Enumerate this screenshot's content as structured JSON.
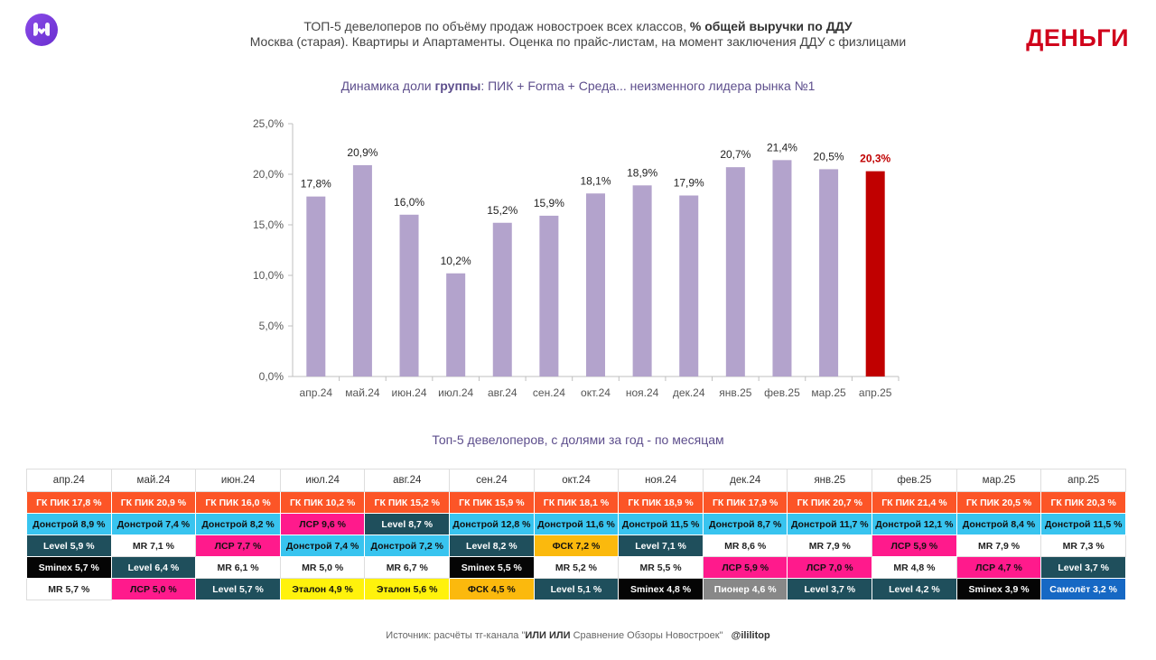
{
  "header": {
    "title_prefix": "ТОП-5 девелоперов по объёму продаж новостроек всех классов,",
    "title_bold": "% общей выручки по ДДУ",
    "subtitle": "Москва (старая). Квартиры и Апартаменты. Оценка по прайс-листам, на момент заключения ДДУ с физлицами",
    "brand": "ДЕНЬГИ",
    "logo_icon": "hands-heart-icon"
  },
  "chart_title": {
    "prefix": "Динамика доли",
    "bold": "группы",
    "suffix": ": ПИК + Forma + Среда... неизменного лидера рынка №1"
  },
  "chart_data": {
    "type": "bar",
    "categories": [
      "апр.24",
      "май.24",
      "июн.24",
      "июл.24",
      "авг.24",
      "сен.24",
      "окт.24",
      "ноя.24",
      "дек.24",
      "янв.25",
      "фев.25",
      "мар.25",
      "апр.25"
    ],
    "values": [
      17.8,
      20.9,
      16.0,
      10.2,
      15.2,
      15.9,
      18.1,
      18.9,
      17.9,
      20.7,
      21.4,
      20.5,
      20.3
    ],
    "labels": [
      "17,8%",
      "20,9%",
      "16,0%",
      "10,2%",
      "15,2%",
      "15,9%",
      "18,1%",
      "18,9%",
      "17,9%",
      "20,7%",
      "21,4%",
      "20,5%",
      "20,3%"
    ],
    "ylim": [
      0,
      25
    ],
    "yticks": [
      0,
      5,
      10,
      15,
      20,
      25
    ],
    "ytick_labels": [
      "0,0%",
      "5,0%",
      "10,0%",
      "15,0%",
      "20,0%",
      "25,0%"
    ],
    "grid": false,
    "bar_color": "#b3a3cc",
    "highlight_color": "#c00000",
    "highlight_index": 12
  },
  "table_title": "Топ-5 девелоперов, с долями за год - по месяцам",
  "table": {
    "months": [
      "апр.24",
      "май.24",
      "июн.24",
      "июл.24",
      "авг.24",
      "сен.24",
      "окт.24",
      "ноя.24",
      "дек.24",
      "янв.25",
      "фев.25",
      "мар.25",
      "апр.25"
    ],
    "rows": [
      [
        "ГК ПИК 17,8 %",
        "ГК ПИК 20,9 %",
        "ГК ПИК 16,0 %",
        "ГК ПИК 10,2 %",
        "ГК ПИК 15,2 %",
        "ГК ПИК 15,9 %",
        "ГК ПИК 18,1 %",
        "ГК ПИК 18,9 %",
        "ГК ПИК 17,9 %",
        "ГК ПИК 20,7 %",
        "ГК ПИК 21,4 %",
        "ГК ПИК 20,5 %",
        "ГК ПИК 20,3 %"
      ],
      [
        "Донстрой 8,9 %",
        "Донстрой 7,4 %",
        "Донстрой 8,2 %",
        "ЛСР 9,6 %",
        "Level 8,7 %",
        "Донстрой 12,8 %",
        "Донстрой 11,6 %",
        "Донстрой 11,5 %",
        "Донстрой 8,7 %",
        "Донстрой 11,7 %",
        "Донстрой 12,1 %",
        "Донстрой 8,4 %",
        "Донстрой 11,5 %"
      ],
      [
        "Level 5,9 %",
        "MR 7,1 %",
        "ЛСР 7,7 %",
        "Донстрой 7,4 %",
        "Донстрой 7,2 %",
        "Level 8,2 %",
        "ФСК 7,2 %",
        "Level 7,1 %",
        "MR 8,6 %",
        "MR 7,9 %",
        "ЛСР 5,9 %",
        "MR 7,9 %",
        "MR 7,3 %"
      ],
      [
        "Sminex 5,7 %",
        "Level 6,4 %",
        "MR 6,1 %",
        "MR 5,0 %",
        "MR 6,7 %",
        "Sminex 5,5 %",
        "MR 5,2 %",
        "MR 5,5 %",
        "ЛСР 5,9 %",
        "ЛСР 7,0 %",
        "MR 4,8 %",
        "ЛСР 4,7 %",
        "Level 3,7 %"
      ],
      [
        "MR 5,7 %",
        "ЛСР 5,0 %",
        "Level 5,7 %",
        "Эталон 4,9 %",
        "Эталон 5,6 %",
        "ФСК 4,5 %",
        "Level 5,1 %",
        "Sminex 4,8 %",
        "Пионер 4,6 %",
        "Level 3,7 %",
        "Level 4,2 %",
        "Sminex 3,9 %",
        "Самолёт 3,2 %"
      ]
    ]
  },
  "developer_colors": {
    "ГК ПИК": {
      "bg": "#fc5527",
      "fg": "#ffffff"
    },
    "Донстрой": {
      "bg": "#38c4ef",
      "fg": "#111111"
    },
    "Level": {
      "bg": "#1f4f5c",
      "fg": "#ffffff"
    },
    "MR": {
      "bg": "#ffffff",
      "fg": "#222222"
    },
    "ЛСР": {
      "bg": "#ff1a8c",
      "fg": "#111111"
    },
    "Sminex": {
      "bg": "#050505",
      "fg": "#ffffff"
    },
    "ФСК": {
      "bg": "#fbb90d",
      "fg": "#111111"
    },
    "Эталон": {
      "bg": "#fff20c",
      "fg": "#111111"
    },
    "Пионер": {
      "bg": "#888888",
      "fg": "#ffffff"
    },
    "Самолёт": {
      "bg": "#1668c4",
      "fg": "#ffffff"
    }
  },
  "source": {
    "prefix": "Источник: расчёты тг-канала \"",
    "bold": "ИЛИ ИЛИ",
    "suffix": " Сравнение Обзоры Новостроек\"",
    "handle": "@ililitop"
  }
}
